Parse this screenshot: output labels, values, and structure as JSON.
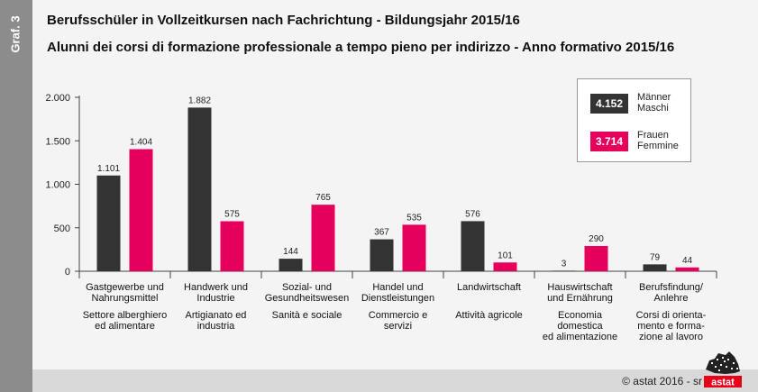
{
  "side_label": "Graf. 3",
  "title_de": "Berufsschüler in Vollzeitkursen nach Fachrichtung - Bildungsjahr 2015/16",
  "title_it": "Alunni dei corsi di formazione professionale a tempo pieno per indirizzo - Anno formativo 2015/16",
  "copyright": "© astat 2016 - sr",
  "logo_text": "astat",
  "colors": {
    "male": "#333333",
    "female": "#e6005c",
    "background": "#f4f4f4",
    "strip": "#8c8c8c"
  },
  "legend": {
    "male": {
      "total": "4.152",
      "label_de": "Männer",
      "label_it": "Maschi"
    },
    "female": {
      "total": "3.714",
      "label_de": "Frauen",
      "label_it": "Femmine"
    }
  },
  "chart_data": {
    "type": "bar",
    "categories": [
      {
        "de": [
          "Gastgewerbe und",
          "Nahrungsmittel"
        ],
        "it": [
          "Settore alberghiero",
          "ed alimentare"
        ]
      },
      {
        "de": [
          "Handwerk und",
          "Industrie"
        ],
        "it": [
          "Artigianato ed",
          "industria"
        ]
      },
      {
        "de": [
          "Sozial- und",
          "Gesundheitswesen"
        ],
        "it": [
          "Sanità e sociale"
        ]
      },
      {
        "de": [
          "Handel und",
          "Dienstleistungen"
        ],
        "it": [
          "Commercio e",
          "servizi"
        ]
      },
      {
        "de": [
          "Landwirtschaft"
        ],
        "it": [
          "Attività agricole"
        ]
      },
      {
        "de": [
          "Hauswirtschaft",
          "und Ernährung"
        ],
        "it": [
          "Economia domestica",
          "ed alimentazione"
        ]
      },
      {
        "de": [
          "Berufsfindung/",
          "Anlehre"
        ],
        "it": [
          "Corsi di orienta-",
          "mento e forma-",
          "zione al lavoro"
        ]
      }
    ],
    "series": [
      {
        "name": "Männer / Maschi",
        "values": [
          1101,
          1882,
          144,
          367,
          576,
          3,
          79
        ],
        "labels": [
          "1.101",
          "1.882",
          "144",
          "367",
          "576",
          "3",
          "79"
        ]
      },
      {
        "name": "Frauen / Femmine",
        "values": [
          1404,
          575,
          765,
          535,
          101,
          290,
          44
        ],
        "labels": [
          "1.404",
          "575",
          "765",
          "535",
          "101",
          "290",
          "44"
        ]
      }
    ],
    "yticks": [
      0,
      500,
      1000,
      1500,
      2000
    ],
    "ytick_labels": [
      "0",
      "500",
      "1.000",
      "1.500",
      "2.000"
    ],
    "ylim": [
      0,
      2000
    ],
    "grid": false,
    "legend_position": "top-right"
  }
}
